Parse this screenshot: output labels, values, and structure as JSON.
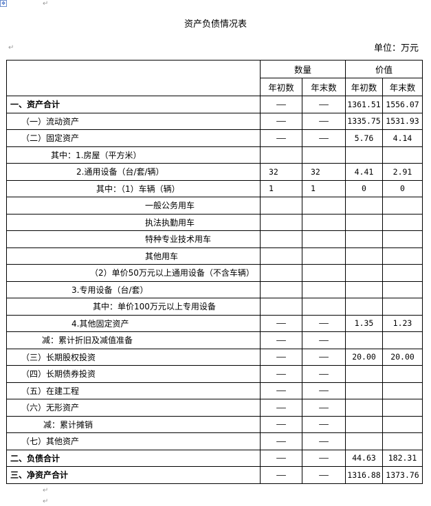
{
  "title": "资产负债情况表",
  "unit": "单位：万元",
  "header": {
    "quantity": "数量",
    "value": "价值",
    "begin": "年初数",
    "end": "年末数"
  },
  "rows": [
    {
      "label": "一、资产合计",
      "bold": true,
      "q_begin": "——",
      "q_end": "——",
      "v_begin": "1361.51",
      "v_end": "1556.07"
    },
    {
      "label": "（一）流动资产",
      "q_begin": "——",
      "q_end": "——",
      "v_begin": "1335.75",
      "v_end": "1531.93"
    },
    {
      "label": "（二）固定资产",
      "q_begin": "——",
      "q_end": "——",
      "v_begin": "5.76",
      "v_end": "4.14"
    },
    {
      "label": "其中：1.房屋（平方米）",
      "q_begin": "",
      "q_end": "",
      "v_begin": "",
      "v_end": ""
    },
    {
      "label": "2.通用设备（台/套/辆）",
      "q_begin": "32",
      "q_end": "32",
      "v_begin": "4.41",
      "v_end": "2.91"
    },
    {
      "label": "其中：（1）车辆（辆）",
      "q_begin": "1",
      "q_end": "1",
      "v_begin": "0",
      "v_end": "0"
    },
    {
      "label": "一般公务用车",
      "q_begin": "",
      "q_end": "",
      "v_begin": "",
      "v_end": ""
    },
    {
      "label": "执法执勤用车",
      "q_begin": "",
      "q_end": "",
      "v_begin": "",
      "v_end": ""
    },
    {
      "label": "特种专业技术用车",
      "q_begin": "",
      "q_end": "",
      "v_begin": "",
      "v_end": ""
    },
    {
      "label": "其他用车",
      "q_begin": "",
      "q_end": "",
      "v_begin": "",
      "v_end": ""
    },
    {
      "label": "（2）单价50万元以上通用设备（不含车辆）",
      "q_begin": "",
      "q_end": "",
      "v_begin": "",
      "v_end": ""
    },
    {
      "label": "3.专用设备（台/套）",
      "q_begin": "",
      "q_end": "",
      "v_begin": "",
      "v_end": ""
    },
    {
      "label": "其中：单价100万元以上专用设备",
      "q_begin": "",
      "q_end": "",
      "v_begin": "",
      "v_end": ""
    },
    {
      "label": "4.其他固定资产",
      "q_begin": "——",
      "q_end": "——",
      "v_begin": "1.35",
      "v_end": "1.23"
    },
    {
      "label": "减：累计折旧及减值准备",
      "q_begin": "——",
      "q_end": "——",
      "v_begin": "",
      "v_end": ""
    },
    {
      "label": "（三）长期股权投资",
      "q_begin": "——",
      "q_end": "——",
      "v_begin": "20.00",
      "v_end": "20.00"
    },
    {
      "label": "（四）长期债券投资",
      "q_begin": "——",
      "q_end": "——",
      "v_begin": "",
      "v_end": ""
    },
    {
      "label": "（五）在建工程",
      "q_begin": "——",
      "q_end": "——",
      "v_begin": "",
      "v_end": ""
    },
    {
      "label": "（六）无形资产",
      "q_begin": "——",
      "q_end": "——",
      "v_begin": "",
      "v_end": ""
    },
    {
      "label": "减：累计摊销",
      "q_begin": "——",
      "q_end": "——",
      "v_begin": "",
      "v_end": ""
    },
    {
      "label": "（七）其他资产",
      "q_begin": "——",
      "q_end": "——",
      "v_begin": "",
      "v_end": ""
    },
    {
      "label": "二、负债合计",
      "bold": true,
      "q_begin": "——",
      "q_end": "——",
      "v_begin": "44.63",
      "v_end": "182.31"
    },
    {
      "label": "三、净资产合计",
      "bold": true,
      "q_begin": "——",
      "q_end": "——",
      "v_begin": "1316.88",
      "v_end": "1373.76"
    }
  ]
}
